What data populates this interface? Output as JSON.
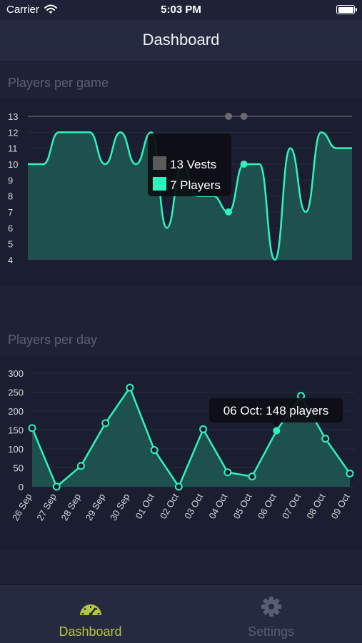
{
  "status_bar": {
    "carrier": "Carrier",
    "time": "5:03 PM"
  },
  "nav": {
    "title": "Dashboard"
  },
  "sections": {
    "game_title": "Players per game",
    "day_title": "Players per day"
  },
  "colors": {
    "accent": "#2ff2bd",
    "fill": "#1e5a53",
    "vests": "#5b5b5b",
    "tab_active": "#b6c73b",
    "tab_inactive": "#5a5e74"
  },
  "chart_data": [
    {
      "type": "line",
      "title": "Players per game",
      "ylim": [
        4,
        13
      ],
      "y_ticks": [
        4,
        5,
        6,
        7,
        8,
        9,
        10,
        11,
        12,
        13
      ],
      "grid": true,
      "series": [
        {
          "name": "Players",
          "values": [
            10,
            10,
            12,
            12,
            12,
            10,
            12,
            10,
            12,
            6,
            10,
            8,
            8,
            7,
            10,
            10,
            4,
            11,
            7,
            12,
            11,
            11
          ]
        },
        {
          "name": "Vests",
          "values": [
            13,
            13,
            13,
            13,
            13,
            13,
            13,
            13,
            13,
            13,
            13,
            13,
            13,
            13,
            13,
            13,
            13,
            13,
            13,
            13,
            13,
            13
          ]
        }
      ],
      "highlight_index": 13,
      "tooltip": {
        "vests_label": "13 Vests",
        "players_label": "7 Players"
      }
    },
    {
      "type": "line",
      "title": "Players per day",
      "categories": [
        "26 Sep",
        "27 Sep",
        "28 Sep",
        "29 Sep",
        "30 Sep",
        "01 Oct",
        "02 Oct",
        "03 Oct",
        "04 Oct",
        "05 Oct",
        "06 Oct",
        "07 Oct",
        "08 Oct",
        "09 Oct"
      ],
      "values": [
        155,
        0,
        55,
        168,
        262,
        97,
        0,
        152,
        38,
        27,
        148,
        240,
        127,
        35
      ],
      "ylim": [
        0,
        300
      ],
      "y_ticks": [
        "0",
        "50",
        "100",
        "150",
        "200",
        "250",
        "300"
      ],
      "grid": true,
      "highlight_index": 10,
      "tooltip": "06 Oct: 148 players"
    }
  ],
  "tab_bar": {
    "items": [
      {
        "label": "Dashboard",
        "icon": "speedometer-icon",
        "active": true
      },
      {
        "label": "Settings",
        "icon": "gear-icon",
        "active": false
      }
    ]
  }
}
